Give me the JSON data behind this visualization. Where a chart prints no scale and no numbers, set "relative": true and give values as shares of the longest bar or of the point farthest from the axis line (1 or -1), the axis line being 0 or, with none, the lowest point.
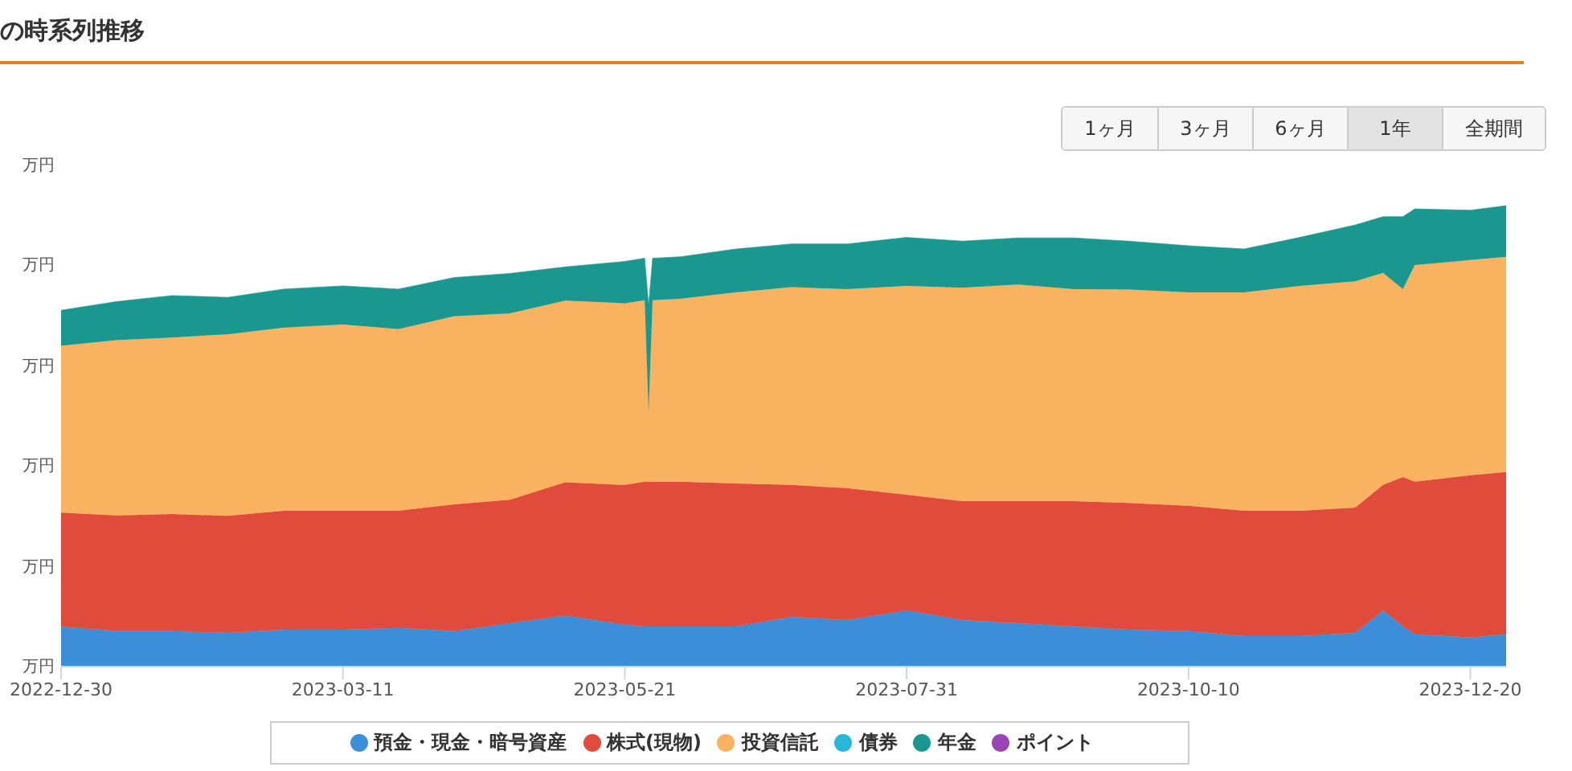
{
  "chart_data": {
    "type": "area",
    "title": "の時系列推移",
    "stacked": true,
    "relative": true,
    "legend": "bottom",
    "annotations": [
      "万円",
      "万円",
      "万円",
      "万円",
      "万円",
      "万円",
      "1ヶ月",
      "3ヶ月",
      "6ヶ月",
      "1年",
      "全期間"
    ],
    "x": [
      "2022-12-30",
      "2023-01-13",
      "2023-01-27",
      "2023-02-10",
      "2023-02-24",
      "2023-03-11",
      "2023-03-25",
      "2023-04-08",
      "2023-04-22",
      "2023-05-06",
      "2023-05-21",
      "2023-05-26",
      "2023-05-27",
      "2023-05-28",
      "2023-06-04",
      "2023-06-18",
      "2023-07-02",
      "2023-07-16",
      "2023-07-31",
      "2023-08-14",
      "2023-08-28",
      "2023-09-11",
      "2023-09-25",
      "2023-10-10",
      "2023-10-24",
      "2023-11-07",
      "2023-11-21",
      "2023-11-28",
      "2023-12-03",
      "2023-12-06",
      "2023-12-20",
      "2023-12-29"
    ],
    "xlim": [
      "2022-12-30",
      "2023-12-29"
    ],
    "xticks": [
      "2022-12-30",
      "2023-03-11",
      "2023-05-21",
      "2023-07-31",
      "2023-10-10",
      "2023-12-20"
    ],
    "series": [
      {
        "name": "預金・現金・暗号資産",
        "color": "#3d8ed9",
        "values": [
          0.087,
          0.077,
          0.077,
          0.073,
          0.08,
          0.08,
          0.084,
          0.077,
          0.094,
          0.111,
          0.091,
          0.087,
          0.087,
          0.087,
          0.087,
          0.087,
          0.108,
          0.101,
          0.122,
          0.101,
          0.094,
          0.087,
          0.08,
          0.077,
          0.066,
          0.066,
          0.073,
          0.122,
          0.087,
          0.07,
          0.063,
          0.07
        ]
      },
      {
        "name": "株式(現物)",
        "color": "#e04b3c",
        "values": [
          0.247,
          0.251,
          0.254,
          0.254,
          0.258,
          0.258,
          0.254,
          0.275,
          0.268,
          0.289,
          0.303,
          0.314,
          0.314,
          0.314,
          0.314,
          0.31,
          0.286,
          0.286,
          0.251,
          0.258,
          0.265,
          0.272,
          0.275,
          0.272,
          0.272,
          0.272,
          0.272,
          0.272,
          0.324,
          0.331,
          0.352,
          0.352
        ]
      },
      {
        "name": "投資信託",
        "color": "#f9b25f",
        "values": [
          0.362,
          0.38,
          0.383,
          0.394,
          0.397,
          0.404,
          0.394,
          0.408,
          0.404,
          0.394,
          0.394,
          0.394,
          0.15,
          0.394,
          0.397,
          0.415,
          0.429,
          0.432,
          0.453,
          0.463,
          0.47,
          0.46,
          0.463,
          0.463,
          0.474,
          0.488,
          0.491,
          0.46,
          0.408,
          0.47,
          0.467,
          0.467
        ]
      },
      {
        "name": "債券",
        "color": "#26b8d6",
        "values": [
          null,
          null,
          null,
          null,
          null,
          null,
          null,
          null,
          null,
          null,
          null,
          null,
          null,
          null,
          null,
          null,
          null,
          null,
          null,
          null,
          null,
          null,
          null,
          null,
          null,
          null,
          null,
          null,
          null,
          null,
          null,
          null
        ]
      },
      {
        "name": "年金",
        "color": "#1a9890",
        "values": [
          0.077,
          0.084,
          0.091,
          0.08,
          0.084,
          0.084,
          0.087,
          0.084,
          0.087,
          0.073,
          0.091,
          0.091,
          0.233,
          0.091,
          0.091,
          0.094,
          0.094,
          0.098,
          0.105,
          0.101,
          0.101,
          0.111,
          0.105,
          0.101,
          0.094,
          0.105,
          0.122,
          0.122,
          0.157,
          0.122,
          0.108,
          0.111
        ]
      },
      {
        "name": "ポイント",
        "color": "#9b44b8",
        "values": [
          null,
          null,
          null,
          null,
          null,
          null,
          null,
          null,
          null,
          null,
          null,
          null,
          null,
          null,
          null,
          null,
          null,
          null,
          null,
          null,
          null,
          null,
          null,
          null,
          null,
          null,
          null,
          null,
          null,
          null,
          null,
          null
        ]
      }
    ]
  }
}
